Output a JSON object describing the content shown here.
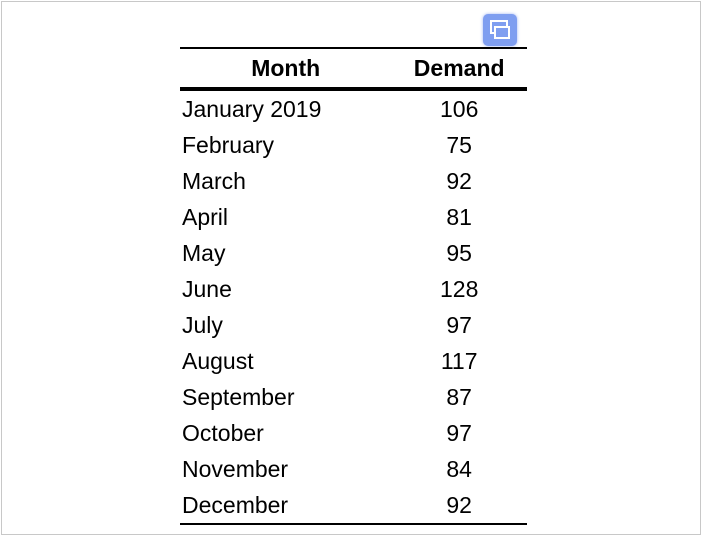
{
  "table": {
    "header": [
      "Month",
      "Demand"
    ],
    "rows": [
      [
        "January 2019",
        "106"
      ],
      [
        "February",
        "75"
      ],
      [
        "March",
        "92"
      ],
      [
        "April",
        "81"
      ],
      [
        "May",
        "95"
      ],
      [
        "June",
        "128"
      ],
      [
        "July",
        "97"
      ],
      [
        "August",
        "117"
      ],
      [
        "September",
        "87"
      ],
      [
        "October",
        "97"
      ],
      [
        "November",
        "84"
      ],
      [
        "December",
        "92"
      ]
    ]
  }
}
